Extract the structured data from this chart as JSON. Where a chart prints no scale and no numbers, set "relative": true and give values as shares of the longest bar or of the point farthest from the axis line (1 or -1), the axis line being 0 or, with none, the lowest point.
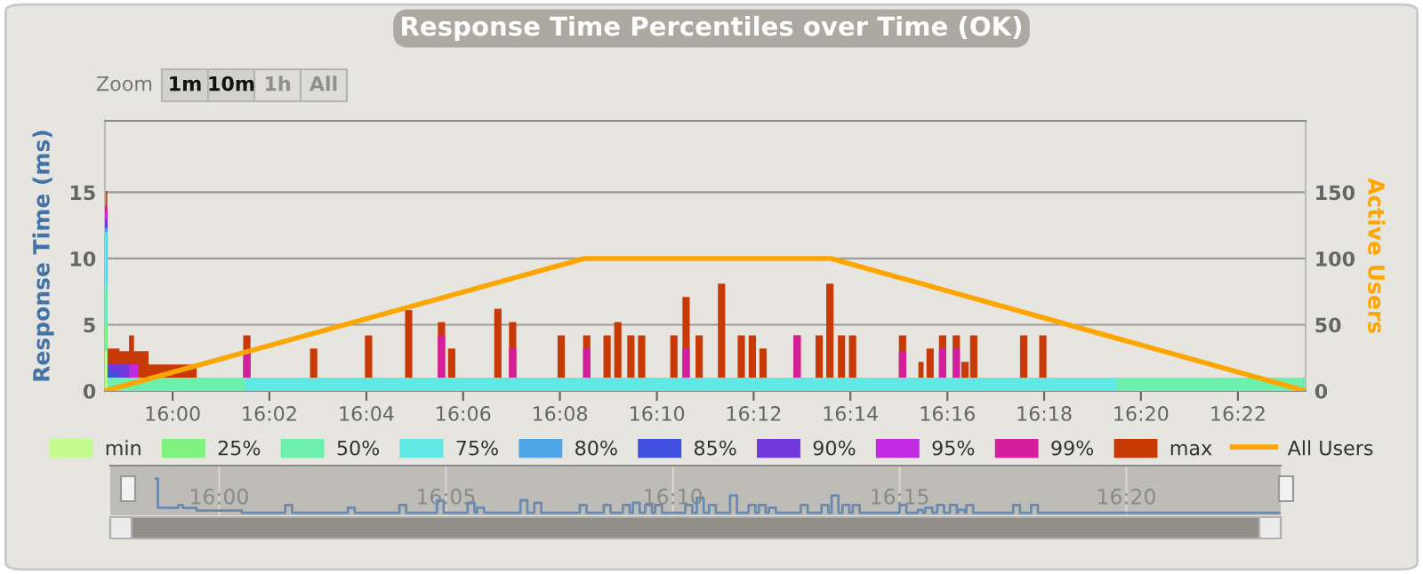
{
  "chart_data": [
    {
      "type": "area",
      "title": "Response Time Percentiles over Time (OK)",
      "ylabel": "Response Time (ms)",
      "y2label": "Active Users",
      "annotations": [
        "Zoom",
        "1m",
        "10m",
        "1h",
        "All"
      ],
      "xlim": [
        15.9767,
        16.39
      ],
      "xticks": [
        {
          "value": 16.0,
          "label": "16:00"
        },
        {
          "value": 16.0333,
          "label": "16:02"
        },
        {
          "value": 16.0667,
          "label": "16:04"
        },
        {
          "value": 16.1,
          "label": "16:06"
        },
        {
          "value": 16.1333,
          "label": "16:08"
        },
        {
          "value": 16.1667,
          "label": "16:10"
        },
        {
          "value": 16.2,
          "label": "16:12"
        },
        {
          "value": 16.2333,
          "label": "16:14"
        },
        {
          "value": 16.2667,
          "label": "16:16"
        },
        {
          "value": 16.3,
          "label": "16:18"
        },
        {
          "value": 16.3333,
          "label": "16:20"
        },
        {
          "value": 16.3667,
          "label": "16:22"
        }
      ],
      "ylim": [
        0,
        20.4
      ],
      "yticks": [
        0,
        5,
        10,
        15
      ],
      "y2lim": [
        0,
        204
      ],
      "y2ticks": [
        0,
        50,
        100,
        150
      ],
      "grid": "y",
      "legend": "bottom",
      "series": [
        {
          "name": "min",
          "color": "#c2fc8e",
          "x": [
            15.9767,
            15.9775,
            16.39
          ],
          "values": [
            3,
            0,
            0
          ]
        },
        {
          "name": "25%",
          "color": "#7ef27c",
          "x": [
            15.9767,
            15.9775,
            16.39
          ],
          "values": [
            5,
            0,
            0
          ]
        },
        {
          "name": "50%",
          "color": "#6ef0ad",
          "x": [
            15.9767,
            15.9775,
            16.025,
            16.325,
            16.39
          ],
          "values": [
            8,
            1,
            0,
            1,
            1
          ]
        },
        {
          "name": "75%",
          "color": "#5fe8e4",
          "x": [
            15.9767,
            15.9775,
            16.39
          ],
          "values": [
            12,
            1,
            1
          ]
        },
        {
          "name": "80%",
          "color": "#4ea6e6",
          "x": [
            15.9767,
            15.9775,
            16.39
          ],
          "values": [
            12.3,
            1,
            1
          ]
        },
        {
          "name": "85%",
          "color": "#3f4fe0",
          "x": [
            15.9767,
            15.9775,
            15.9817,
            16.39
          ],
          "values": [
            12.5,
            1.5,
            1,
            1
          ]
        },
        {
          "name": "90%",
          "color": "#7139dc",
          "x": [
            15.9767,
            15.9775,
            15.985,
            16.39
          ],
          "values": [
            13,
            2,
            1,
            1
          ]
        },
        {
          "name": "95%",
          "color": "#c12ae0",
          "x": [
            15.9767,
            15.9775,
            15.9883,
            16.39
          ],
          "values": [
            13.5,
            2,
            1,
            1
          ]
        },
        {
          "name": "99%",
          "color": "#d41f9c",
          "x": [
            15.9767,
            15.9775,
            15.9883,
            16.0243,
            16.0268,
            16.0913,
            16.0938,
            16.1158,
            16.1183,
            16.1413,
            16.1438,
            16.1755,
            16.178,
            16.2137,
            16.2162,
            16.25,
            16.2525,
            16.2638,
            16.2663,
            16.2685,
            16.271,
            16.39
          ],
          "values": [
            14,
            2,
            1,
            3,
            1,
            4.2,
            1,
            3.2,
            1,
            3.2,
            1,
            3.2,
            1,
            4.2,
            1,
            3,
            1,
            3.2,
            1,
            3.2,
            1,
            1
          ]
        },
        {
          "name": "max",
          "color": "#c83a05",
          "x": [
            15.9767,
            15.9775,
            15.9817,
            15.985,
            15.9867,
            15.9917,
            16.0083,
            16.0243,
            16.0268,
            16.0473,
            16.0498,
            16.0662,
            16.0687,
            16.08,
            16.0825,
            16.0913,
            16.0938,
            16.0948,
            16.0973,
            16.1107,
            16.1132,
            16.1158,
            16.1183,
            16.1325,
            16.135,
            16.1413,
            16.1438,
            16.1483,
            16.1508,
            16.152,
            16.1545,
            16.1565,
            16.159,
            16.1602,
            16.1627,
            16.1713,
            16.1738,
            16.1755,
            16.178,
            16.18,
            16.1825,
            16.1877,
            16.1902,
            16.1945,
            16.197,
            16.1983,
            16.2008,
            16.202,
            16.2045,
            16.2137,
            16.2162,
            16.2213,
            16.2238,
            16.225,
            16.2275,
            16.229,
            16.2315,
            16.2328,
            16.2353,
            16.25,
            16.2525,
            16.2567,
            16.2585,
            16.2595,
            16.262,
            16.2638,
            16.2663,
            16.2685,
            16.271,
            16.2715,
            16.274,
            16.2745,
            16.277,
            16.2917,
            16.2942,
            16.2983,
            16.3008,
            16.39
          ],
          "values": [
            15.1,
            3.2,
            3,
            4.2,
            3,
            2,
            1,
            4.2,
            1,
            3.2,
            1,
            4.2,
            1,
            6.1,
            1,
            5.2,
            1,
            3.2,
            1,
            6.2,
            1,
            5.2,
            1,
            4.2,
            1,
            4.2,
            1,
            4.2,
            1,
            5.2,
            1,
            4.2,
            1,
            4.2,
            1,
            4.2,
            1,
            7.1,
            1,
            4.2,
            1,
            8.1,
            1,
            4.2,
            1,
            4.2,
            1,
            3.2,
            1,
            4.2,
            1,
            4.2,
            1,
            8.1,
            1,
            4.2,
            1,
            4.2,
            1,
            4.2,
            1,
            2.2,
            1,
            3.2,
            1,
            4.2,
            1,
            4.2,
            1,
            2.2,
            1,
            4.2,
            1,
            4.2,
            1,
            4.2,
            1,
            1
          ]
        },
        {
          "name": "All Users",
          "type": "line",
          "axis": "y2",
          "color": "#ffa500",
          "x": [
            15.9767,
            16.1417,
            16.2267,
            16.39
          ],
          "values": [
            0,
            100,
            100,
            0
          ]
        }
      ]
    },
    {
      "type": "step",
      "relative": true,
      "tick_labels": "x",
      "grid": "x",
      "xlim": [
        15.96,
        16.39
      ],
      "xticks": [
        {
          "value": 16.0,
          "label": "16:00"
        },
        {
          "value": 16.0833,
          "label": "16:05"
        },
        {
          "value": 16.1667,
          "label": "16:10"
        },
        {
          "value": 16.25,
          "label": "16:15"
        },
        {
          "value": 16.3333,
          "label": "16:20"
        }
      ],
      "x": [
        15.9767,
        15.9775,
        15.9817,
        15.985,
        15.9867,
        15.9917,
        16.0083,
        16.0243,
        16.0268,
        16.0473,
        16.0498,
        16.0662,
        16.0687,
        16.08,
        16.0825,
        16.0913,
        16.0938,
        16.0948,
        16.0973,
        16.1107,
        16.1132,
        16.1158,
        16.1183,
        16.1325,
        16.135,
        16.1413,
        16.1438,
        16.1483,
        16.1508,
        16.152,
        16.1545,
        16.1565,
        16.159,
        16.1602,
        16.1627,
        16.1713,
        16.1738,
        16.1755,
        16.178,
        16.18,
        16.1825,
        16.1877,
        16.1902,
        16.1945,
        16.197,
        16.1983,
        16.2008,
        16.202,
        16.2045,
        16.2137,
        16.2162,
        16.2213,
        16.2238,
        16.225,
        16.2275,
        16.229,
        16.2315,
        16.2328,
        16.2353,
        16.25,
        16.2525,
        16.2567,
        16.2585,
        16.2595,
        16.262,
        16.2638,
        16.2663,
        16.2685,
        16.271,
        16.2715,
        16.274,
        16.2745,
        16.277,
        16.2917,
        16.2942,
        16.2983,
        16.3008,
        16.39
      ],
      "series": [
        {
          "color": "#6b8ab0",
          "values": [
            1,
            0.21,
            0.2,
            0.28,
            0.2,
            0.13,
            0.07,
            0.28,
            0.07,
            0.21,
            0.07,
            0.28,
            0.07,
            0.4,
            0.07,
            0.34,
            0.07,
            0.21,
            0.07,
            0.41,
            0.07,
            0.34,
            0.07,
            0.28,
            0.07,
            0.28,
            0.07,
            0.28,
            0.07,
            0.34,
            0.07,
            0.28,
            0.07,
            0.28,
            0.07,
            0.28,
            0.07,
            0.47,
            0.07,
            0.28,
            0.07,
            0.54,
            0.07,
            0.28,
            0.07,
            0.28,
            0.07,
            0.21,
            0.07,
            0.28,
            0.07,
            0.28,
            0.07,
            0.54,
            0.07,
            0.28,
            0.07,
            0.28,
            0.07,
            0.28,
            0.07,
            0.15,
            0.07,
            0.21,
            0.07,
            0.28,
            0.07,
            0.28,
            0.07,
            0.15,
            0.07,
            0.28,
            0.07,
            0.28,
            0.07,
            0.28,
            0.07,
            0.07
          ]
        }
      ]
    }
  ]
}
